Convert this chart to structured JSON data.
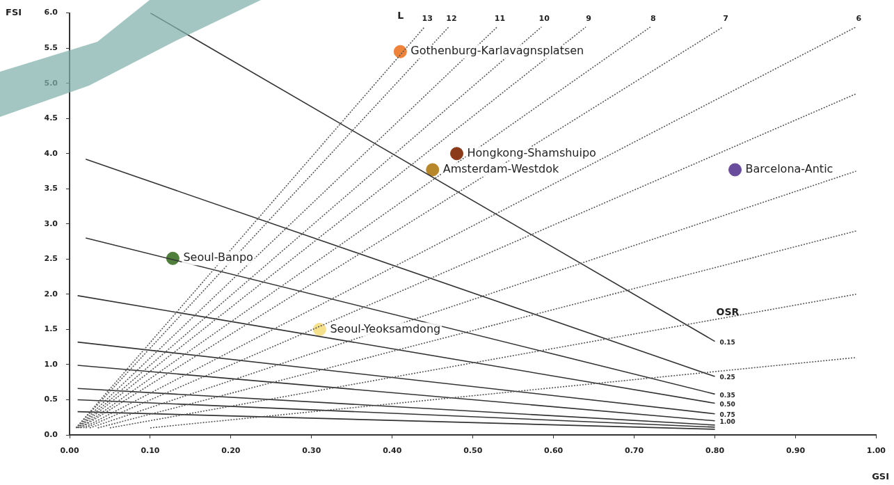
{
  "chart_data": {
    "type": "scatter",
    "xlabel": "GSI",
    "ylabel": "FSI",
    "xlim": [
      0,
      1
    ],
    "ylim": [
      0,
      6
    ],
    "xticks": [
      {
        "value": 0,
        "label": "0.00"
      },
      {
        "value": 0.1,
        "label": "0.10"
      },
      {
        "value": 0.2,
        "label": "0.20"
      },
      {
        "value": 0.3,
        "label": "0.30"
      },
      {
        "value": 0.4,
        "label": "0.40"
      },
      {
        "value": 0.5,
        "label": "0.50"
      },
      {
        "value": 0.6,
        "label": "0.60"
      },
      {
        "value": 0.7,
        "label": "0.70"
      },
      {
        "value": 0.8,
        "label": "0.80"
      },
      {
        "value": 0.9,
        "label": "0.90"
      },
      {
        "value": 1,
        "label": "1.00"
      }
    ],
    "yticks": [
      {
        "value": 0,
        "label": "0.0"
      },
      {
        "value": 0.5,
        "label": "0.5"
      },
      {
        "value": 1,
        "label": "1.0"
      },
      {
        "value": 1.5,
        "label": "1.5"
      },
      {
        "value": 2,
        "label": "2.0"
      },
      {
        "value": 2.5,
        "label": "2.5"
      },
      {
        "value": 3,
        "label": "3.0"
      },
      {
        "value": 3.5,
        "label": "3.5"
      },
      {
        "value": 4,
        "label": "4.0"
      },
      {
        "value": 4.5,
        "label": "4.5"
      },
      {
        "value": 5,
        "label": "5.0"
      },
      {
        "value": 5.5,
        "label": "5.5"
      },
      {
        "value": 6,
        "label": "6.0"
      }
    ],
    "grid": false,
    "legend": false,
    "marker": "circle",
    "annotations": [
      "L",
      "OSR"
    ],
    "series": [
      {
        "type": "line",
        "name": "13",
        "color": "#555555",
        "line_style": "dotted",
        "marker": "none",
        "x": [
          0.008,
          0.44
        ],
        "values": [
          0.1,
          5.8
        ]
      },
      {
        "type": "line",
        "name": "12",
        "color": "#555555",
        "line_style": "dotted",
        "marker": "none",
        "x": [
          0.008,
          0.47
        ],
        "values": [
          0.1,
          5.8
        ]
      },
      {
        "type": "line",
        "name": "11",
        "color": "#555555",
        "line_style": "dotted",
        "marker": "none",
        "x": [
          0.009,
          0.53
        ],
        "values": [
          0.1,
          5.8
        ]
      },
      {
        "type": "line",
        "name": "10",
        "color": "#555555",
        "line_style": "dotted",
        "marker": "none",
        "x": [
          0.01,
          0.585
        ],
        "values": [
          0.1,
          5.8
        ]
      },
      {
        "type": "line",
        "name": "9",
        "color": "#555555",
        "line_style": "dotted",
        "marker": "none",
        "x": [
          0.011,
          0.64
        ],
        "values": [
          0.1,
          5.8
        ]
      },
      {
        "type": "line",
        "name": "8",
        "color": "#555555",
        "line_style": "dotted",
        "marker": "none",
        "x": [
          0.013,
          0.72
        ],
        "values": [
          0.1,
          5.8
        ]
      },
      {
        "type": "line",
        "name": "7",
        "color": "#555555",
        "line_style": "dotted",
        "marker": "none",
        "x": [
          0.014,
          0.81
        ],
        "values": [
          0.1,
          5.8
        ]
      },
      {
        "type": "line",
        "name": "6",
        "color": "#555555",
        "line_style": "dotted",
        "marker": "none",
        "x": [
          0.017,
          0.975
        ],
        "values": [
          0.1,
          5.8
        ]
      },
      {
        "type": "line",
        "color": "#555555",
        "line_style": "dotted",
        "marker": "none",
        "x": [
          0.02,
          0.975
        ],
        "values": [
          0.1,
          4.85
        ]
      },
      {
        "type": "line",
        "color": "#555555",
        "line_style": "dotted",
        "marker": "none",
        "x": [
          0.025,
          0.975
        ],
        "values": [
          0.1,
          3.75
        ]
      },
      {
        "type": "line",
        "color": "#555555",
        "line_style": "dotted",
        "marker": "none",
        "x": [
          0.035,
          0.975
        ],
        "values": [
          0.1,
          2.9
        ]
      },
      {
        "type": "line",
        "color": "#555555",
        "line_style": "dotted",
        "marker": "none",
        "x": [
          0.05,
          0.975
        ],
        "values": [
          0.1,
          2.0
        ]
      },
      {
        "type": "line",
        "color": "#555555",
        "line_style": "dotted",
        "marker": "none",
        "x": [
          0.1,
          0.975
        ],
        "values": [
          0.1,
          1.1
        ]
      },
      {
        "type": "line",
        "name": "0.15",
        "color": "#333333",
        "line_style": "solid",
        "marker": "none",
        "x": [
          0.1,
          0.8
        ],
        "values": [
          6.0,
          1.33
        ]
      },
      {
        "type": "line",
        "name": "0.25",
        "color": "#333333",
        "line_style": "solid",
        "marker": "none",
        "x": [
          0.02,
          0.8
        ],
        "values": [
          3.92,
          0.83
        ]
      },
      {
        "type": "line",
        "name": "0.35",
        "color": "#333333",
        "line_style": "solid",
        "marker": "none",
        "x": [
          0.02,
          0.8
        ],
        "values": [
          2.8,
          0.58
        ]
      },
      {
        "type": "line",
        "name": "0.50",
        "color": "#333333",
        "line_style": "solid",
        "marker": "none",
        "x": [
          0.01,
          0.8
        ],
        "values": [
          1.98,
          0.45
        ]
      },
      {
        "type": "line",
        "name": "0.75",
        "color": "#333333",
        "line_style": "solid",
        "marker": "none",
        "x": [
          0.01,
          0.8
        ],
        "values": [
          1.32,
          0.3
        ]
      },
      {
        "type": "line",
        "name": "1.00",
        "color": "#333333",
        "line_style": "solid",
        "marker": "none",
        "x": [
          0.01,
          0.8
        ],
        "values": [
          0.99,
          0.2
        ]
      },
      {
        "type": "line",
        "color": "#333333",
        "line_style": "solid",
        "marker": "none",
        "x": [
          0.01,
          0.8
        ],
        "values": [
          0.66,
          0.14
        ]
      },
      {
        "type": "line",
        "color": "#333333",
        "line_style": "solid",
        "marker": "none",
        "x": [
          0.01,
          0.8
        ],
        "values": [
          0.5,
          0.11
        ]
      },
      {
        "type": "line",
        "color": "#333333",
        "line_style": "solid",
        "marker": "none",
        "x": [
          0.01,
          0.8
        ],
        "values": [
          0.33,
          0.08
        ]
      },
      {
        "type": "scatter",
        "name": "Gothenburg-Karlavagnsplatsen",
        "color": "#f0833a",
        "x": [
          0.41
        ],
        "values": [
          5.45
        ]
      },
      {
        "type": "scatter",
        "name": "Hongkong-Shamshuipo",
        "color": "#8b3a1a",
        "x": [
          0.48
        ],
        "values": [
          4.0
        ]
      },
      {
        "type": "scatter",
        "name": "Amsterdam-Westdok",
        "color": "#b8862b",
        "x": [
          0.45
        ],
        "values": [
          3.77
        ]
      },
      {
        "type": "scatter",
        "name": "Barcelona-Antic",
        "color": "#6a4c9c",
        "x": [
          0.825
        ],
        "values": [
          3.77
        ]
      },
      {
        "type": "scatter",
        "name": "Seoul-Banpo",
        "color": "#4f7f3a",
        "x": [
          0.128
        ],
        "values": [
          2.51
        ]
      },
      {
        "type": "scatter",
        "name": "Seoul-Yeoksamdong",
        "color": "#f5e08c",
        "x": [
          0.31
        ],
        "values": [
          1.5
        ]
      }
    ]
  }
}
